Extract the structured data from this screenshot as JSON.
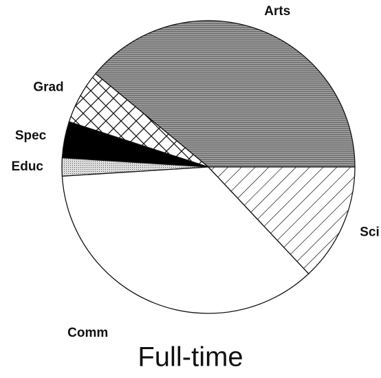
{
  "chart_data": {
    "type": "pie",
    "title": "Full-time",
    "categories": [
      "Arts",
      "Grad",
      "Spec",
      "Educ",
      "Comm",
      "Sci"
    ],
    "values": [
      39,
      6,
      4,
      2,
      36,
      13
    ],
    "patterns": [
      "horizontal-lines",
      "cross-hatch",
      "solid-black",
      "dots",
      "none",
      "diagonal-lines"
    ]
  }
}
